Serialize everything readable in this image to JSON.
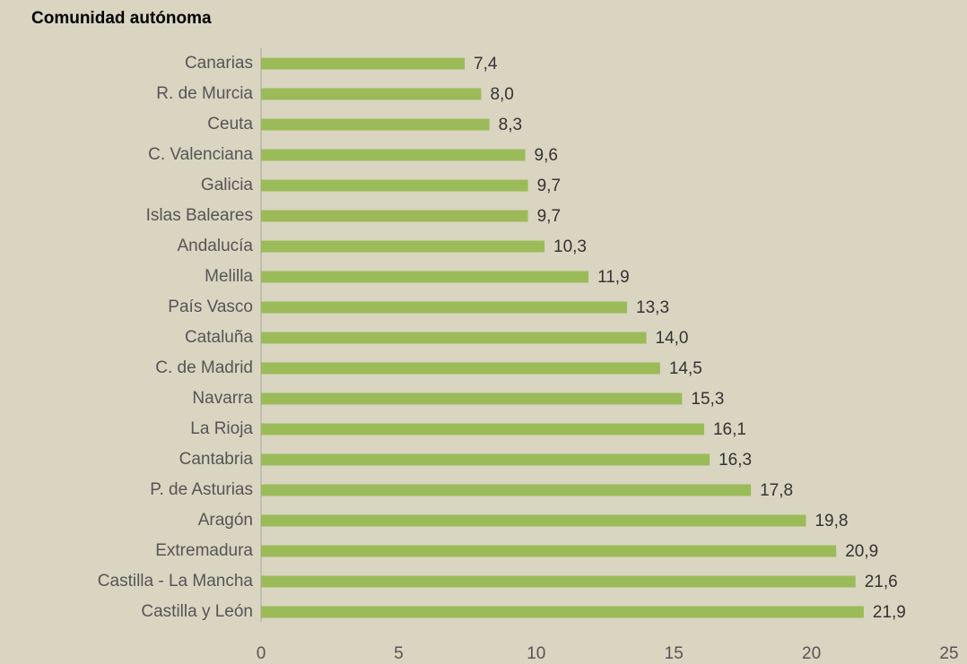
{
  "chart_data": {
    "type": "bar",
    "orientation": "horizontal",
    "title": "Comunidad autónoma",
    "categories": [
      "Canarias",
      "R. de Murcia",
      "Ceuta",
      "C. Valenciana",
      "Galicia",
      "Islas Baleares",
      "Andalucía",
      "Melilla",
      "País Vasco",
      "Cataluña",
      "C. de Madrid",
      "Navarra",
      "La Rioja",
      "Cantabria",
      "P. de Asturias",
      "Aragón",
      "Extremadura",
      "Castilla - La Mancha",
      "Castilla y León"
    ],
    "values": [
      7.4,
      8.0,
      8.3,
      9.6,
      9.7,
      9.7,
      10.3,
      11.9,
      13.3,
      14.0,
      14.5,
      15.3,
      16.1,
      16.3,
      17.8,
      19.8,
      20.9,
      21.6,
      21.9
    ],
    "value_labels": [
      "7,4",
      "8,0",
      "8,3",
      "9,6",
      "9,7",
      "9,7",
      "10,3",
      "11,9",
      "13,3",
      "14,0",
      "14,5",
      "15,3",
      "16,1",
      "16,3",
      "17,8",
      "19,8",
      "20,9",
      "21,6",
      "21,9"
    ],
    "color": "#9bbb59",
    "xlim": [
      0,
      25
    ],
    "xticks": [
      0,
      5,
      10,
      15,
      20,
      25
    ]
  }
}
